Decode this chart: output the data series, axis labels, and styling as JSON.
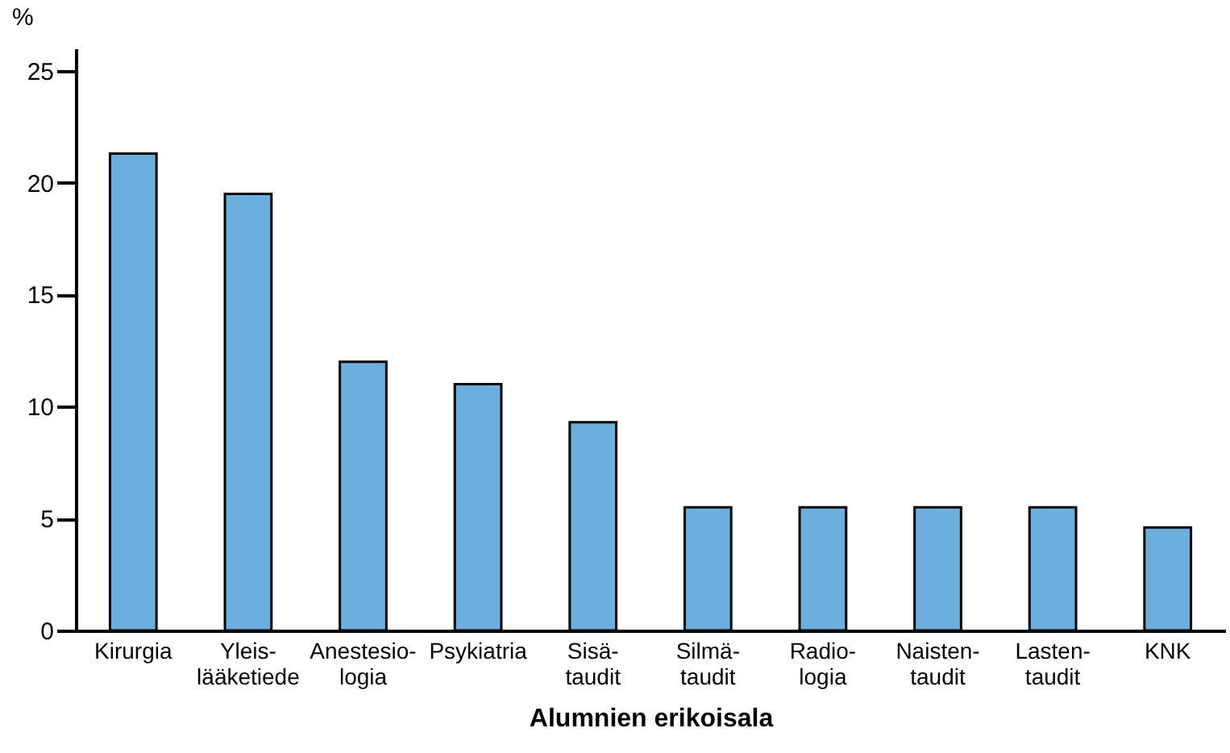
{
  "chart_data": {
    "type": "bar",
    "xlabel": "Alumnien erikoisala",
    "ylabel": "%",
    "categories": [
      "Kirurgia",
      "Yleis-\nlääketiede",
      "Anestesio-\nlogia",
      "Psykiatria",
      "Sisä-\ntaudit",
      "Silmä-\ntaudit",
      "Radio-\nlogia",
      "Naisten-\ntaudit",
      "Lasten-\ntaudit",
      "KNK"
    ],
    "values": [
      21.3,
      19.5,
      12.0,
      11.0,
      9.3,
      5.5,
      5.5,
      5.5,
      5.5,
      4.6
    ],
    "color": "#6aafdd",
    "ylim": [
      0,
      26
    ],
    "yticks": [
      0,
      5,
      10,
      15,
      20,
      25
    ],
    "grid": false
  }
}
